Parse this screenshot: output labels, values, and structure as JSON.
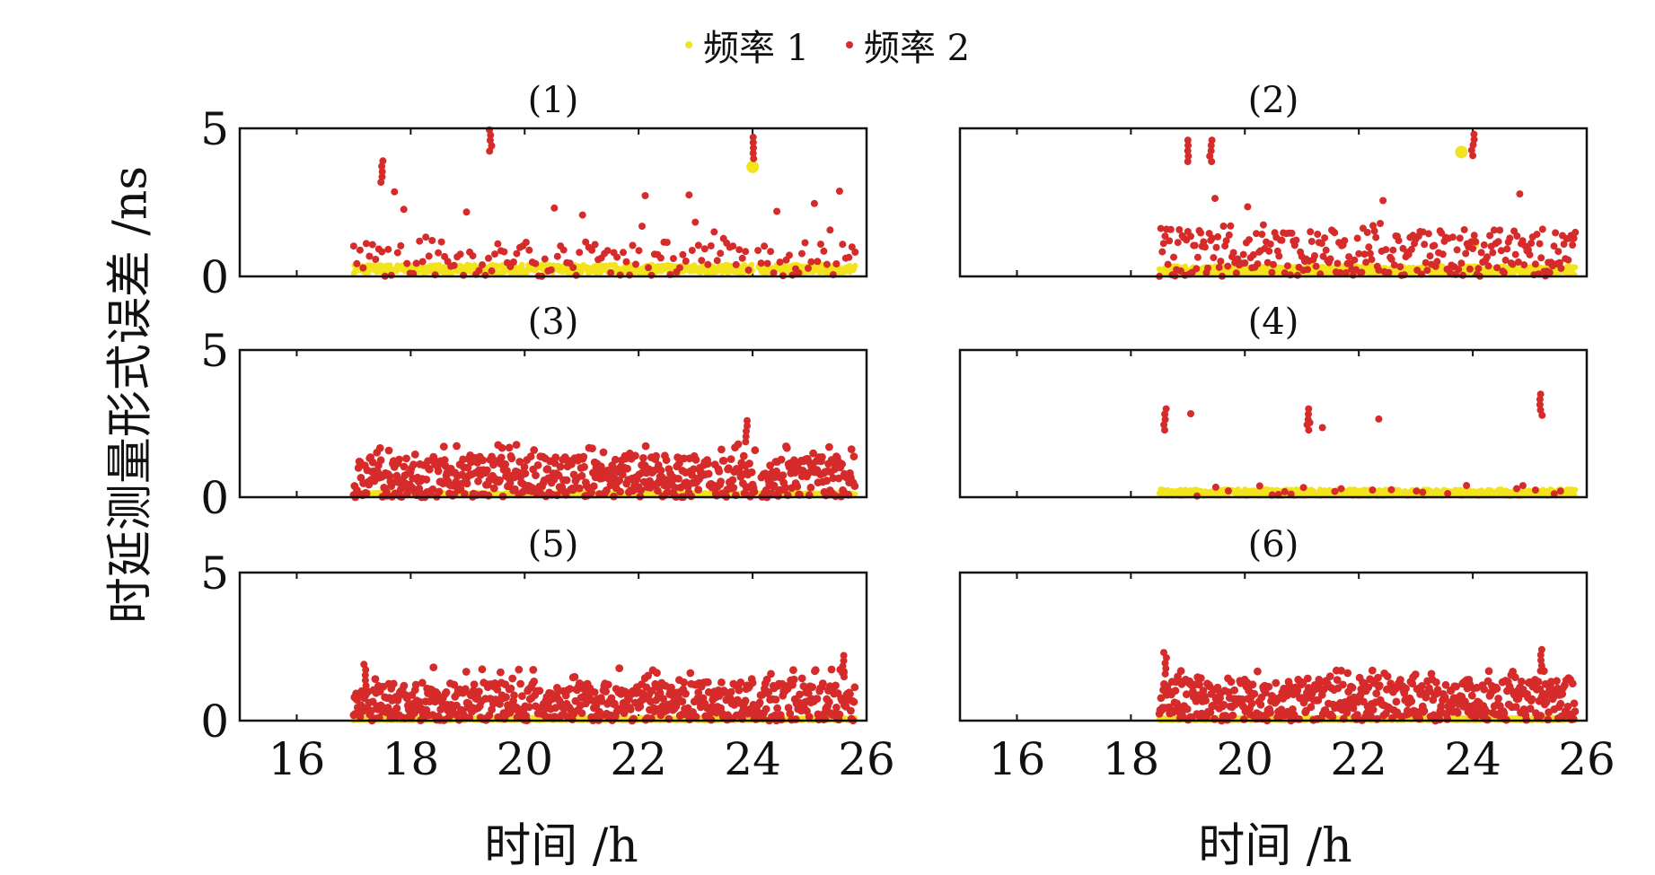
{
  "legend": {
    "series1": "频率 1",
    "series2": "频率 2"
  },
  "colors": {
    "series1": "#f2e31c",
    "series2": "#d62b2b",
    "axis": "#111111"
  },
  "y_label": "时延测量形式误差 /ns",
  "x_label_left": "时间 /h",
  "x_label_right": "时间 /h",
  "chart_data": [
    {
      "type": "scatter",
      "title": "(1)",
      "xlim": [
        15,
        26
      ],
      "ylim": [
        0,
        5
      ],
      "xticks": [
        16,
        18,
        20,
        22,
        24,
        26
      ],
      "yticks": [
        0,
        5
      ],
      "series": [
        {
          "name": "频率 1",
          "x_start": 17.0,
          "x_end": 25.8,
          "level": 0.25,
          "spread": 0.15,
          "gaps": [
            [
              24.0,
              24.1
            ]
          ],
          "spikes": [
            {
              "x": 24.0,
              "y": 3.7
            }
          ]
        },
        {
          "name": "频率 2",
          "x_start": 17.0,
          "x_end": 25.8,
          "base_max": 1.2,
          "outlier_max": 3.0,
          "density": "sparse",
          "gaps": [
            [
              23.95,
              24.05
            ]
          ],
          "spikes": [
            {
              "x": 24.0,
              "y": 4.7
            },
            {
              "x": 19.4,
              "y": 4.95
            },
            {
              "x": 17.5,
              "y": 3.9
            }
          ]
        }
      ]
    },
    {
      "type": "scatter",
      "title": "(2)",
      "xlim": [
        15,
        26
      ],
      "ylim": [
        0,
        5
      ],
      "xticks": [
        16,
        18,
        20,
        22,
        24,
        26
      ],
      "yticks": [
        0,
        5
      ],
      "series": [
        {
          "name": "频率 1",
          "x_start": 18.5,
          "x_end": 25.8,
          "level": 0.2,
          "spread": 0.15,
          "gaps": [],
          "spikes": [
            {
              "x": 23.8,
              "y": 4.2
            },
            {
              "x": 24.0,
              "y": 1.1
            }
          ]
        },
        {
          "name": "频率 2",
          "x_start": 18.5,
          "x_end": 25.8,
          "base_max": 1.6,
          "outlier_max": 2.8,
          "density": "medium",
          "gaps": [],
          "spikes": [
            {
              "x": 19.0,
              "y": 4.6
            },
            {
              "x": 19.4,
              "y": 4.6
            },
            {
              "x": 24.0,
              "y": 4.8
            }
          ]
        }
      ]
    },
    {
      "type": "scatter",
      "title": "(3)",
      "xlim": [
        15,
        26
      ],
      "ylim": [
        0,
        5
      ],
      "xticks": [
        16,
        18,
        20,
        22,
        24,
        26
      ],
      "yticks": [
        0,
        5
      ],
      "series": [
        {
          "name": "频率 1",
          "x_start": 17.0,
          "x_end": 25.8,
          "level": 0.1,
          "spread": 0.05,
          "gaps": [],
          "spikes": []
        },
        {
          "name": "频率 2",
          "x_start": 17.0,
          "x_end": 25.8,
          "base_max": 1.4,
          "outlier_max": 1.8,
          "density": "dense",
          "gaps": [
            [
              24.05,
              24.15
            ]
          ],
          "spikes": [
            {
              "x": 23.9,
              "y": 2.6
            }
          ]
        }
      ]
    },
    {
      "type": "scatter",
      "title": "(4)",
      "xlim": [
        15,
        26
      ],
      "ylim": [
        0,
        5
      ],
      "xticks": [
        16,
        18,
        20,
        22,
        24,
        26
      ],
      "yticks": [
        0,
        5
      ],
      "series": [
        {
          "name": "频率 1",
          "x_start": 18.5,
          "x_end": 25.8,
          "level": 0.15,
          "spread": 0.12,
          "gaps": [],
          "spikes": []
        },
        {
          "name": "频率 2",
          "x_start": 18.5,
          "x_end": 25.8,
          "base_max": 0.4,
          "outlier_max": 3.0,
          "density": "very-sparse",
          "gaps": [],
          "spikes": [
            {
              "x": 25.2,
              "y": 3.5
            },
            {
              "x": 18.6,
              "y": 3.0
            },
            {
              "x": 21.1,
              "y": 3.0
            }
          ]
        }
      ]
    },
    {
      "type": "scatter",
      "title": "(5)",
      "xlim": [
        15,
        26
      ],
      "ylim": [
        0,
        5
      ],
      "xticks": [
        16,
        18,
        20,
        22,
        24,
        26
      ],
      "yticks": [
        0,
        5
      ],
      "series": [
        {
          "name": "频率 1",
          "x_start": 17.0,
          "x_end": 25.8,
          "level": 0.05,
          "spread": 0.05,
          "gaps": [],
          "spikes": []
        },
        {
          "name": "频率 2",
          "x_start": 17.0,
          "x_end": 25.8,
          "base_max": 1.3,
          "outlier_max": 1.8,
          "density": "dense",
          "gaps": [],
          "spikes": [
            {
              "x": 25.6,
              "y": 2.2
            },
            {
              "x": 17.2,
              "y": 1.9
            }
          ]
        }
      ]
    },
    {
      "type": "scatter",
      "title": "(6)",
      "xlim": [
        15,
        26
      ],
      "ylim": [
        0,
        5
      ],
      "xticks": [
        16,
        18,
        20,
        22,
        24,
        26
      ],
      "yticks": [
        0,
        5
      ],
      "series": [
        {
          "name": "频率 1",
          "x_start": 18.5,
          "x_end": 25.8,
          "level": 0.05,
          "spread": 0.05,
          "gaps": [],
          "spikes": []
        },
        {
          "name": "频率 2",
          "x_start": 18.5,
          "x_end": 25.8,
          "base_max": 1.4,
          "outlier_max": 1.7,
          "density": "dense",
          "gaps": [],
          "spikes": [
            {
              "x": 18.6,
              "y": 2.3
            },
            {
              "x": 25.2,
              "y": 2.4
            }
          ]
        }
      ]
    }
  ]
}
